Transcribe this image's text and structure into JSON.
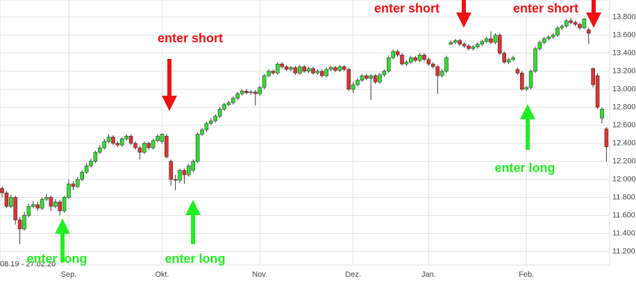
{
  "chart_data": {
    "type": "candlestick",
    "date_range": "08.19 - 27.02.20",
    "categories": [
      null,
      null,
      null,
      null,
      null,
      null,
      null,
      null,
      null,
      null,
      null,
      null,
      null,
      null,
      null,
      "Sep.",
      null,
      null,
      null,
      null,
      null,
      null,
      null,
      null,
      null,
      null,
      null,
      null,
      null,
      null,
      null,
      null,
      null,
      null,
      null,
      null,
      "Okt.",
      null,
      null,
      null,
      null,
      null,
      null,
      null,
      null,
      null,
      null,
      null,
      null,
      null,
      null,
      null,
      null,
      null,
      null,
      null,
      null,
      null,
      "Nov.",
      null,
      null,
      null,
      null,
      null,
      null,
      null,
      null,
      null,
      null,
      null,
      null,
      null,
      null,
      null,
      null,
      null,
      null,
      null,
      null,
      "Dez.",
      null,
      null,
      null,
      null,
      null,
      null,
      null,
      null,
      null,
      null,
      null,
      null,
      null,
      null,
      null,
      null,
      "Jan.",
      null,
      null,
      null,
      null,
      null,
      null,
      null,
      null,
      null,
      null,
      null,
      null,
      null,
      null,
      null,
      null,
      null,
      null,
      null,
      null,
      null,
      "Feb.",
      null,
      null,
      null,
      null,
      null,
      null,
      null,
      null,
      null,
      null,
      null,
      null,
      null,
      null,
      null,
      null,
      null,
      null
    ],
    "open": [
      11900,
      11850,
      11700,
      11800,
      11550,
      11450,
      11600,
      11700,
      11720,
      11680,
      11780,
      11800,
      11700,
      11750,
      11650,
      11800,
      11950,
      11920,
      12000,
      12080,
      12150,
      12200,
      12300,
      12350,
      12420,
      12470,
      12400,
      12380,
      12450,
      12480,
      12400,
      12350,
      12300,
      12400,
      12350,
      12430,
      12420,
      12480,
      12200,
      12000,
      11990,
      12100,
      12050,
      12100,
      12200,
      12500,
      12550,
      12620,
      12650,
      12700,
      12780,
      12830,
      12850,
      12900,
      12950,
      12980,
      12960,
      12970,
      12950,
      13020,
      13150,
      13200,
      13180,
      13280,
      13250,
      13220,
      13240,
      13180,
      13250,
      13200,
      13230,
      13180,
      13200,
      13150,
      13220,
      13240,
      13210,
      13250,
      13220,
      13000,
      13050,
      13100,
      13150,
      13120,
      13150,
      13080,
      13160,
      13200,
      13350,
      13420,
      13380,
      13280,
      13300,
      13350,
      13320,
      13380,
      13330,
      13280,
      13250,
      13150,
      13200,
      13500,
      13520,
      13540,
      13500,
      13480,
      13450,
      13470,
      13500,
      13530,
      13560,
      13520,
      13600,
      13400,
      13300,
      13330,
      13220,
      13180,
      13000,
      13020,
      13200,
      13450,
      13520,
      13560,
      13580,
      13600,
      13680,
      13700,
      13760,
      13740,
      13720,
      13680,
      13660,
      13230,
      13150,
      12680,
      12560
    ],
    "high": [
      11920,
      11870,
      11830,
      11820,
      11580,
      11640,
      11730,
      11760,
      11750,
      11800,
      11840,
      11820,
      11780,
      11770,
      11820,
      12000,
      11980,
      12030,
      12100,
      12180,
      12230,
      12320,
      12380,
      12450,
      12500,
      12490,
      12420,
      12470,
      12500,
      12500,
      12420,
      12370,
      12420,
      12420,
      12450,
      12500,
      12510,
      12500,
      12220,
      12050,
      12120,
      12120,
      12170,
      12220,
      12520,
      12570,
      12640,
      12680,
      12720,
      12800,
      12850,
      12870,
      12920,
      12970,
      13000,
      13000,
      12990,
      12990,
      13040,
      13170,
      13220,
      13220,
      13300,
      13300,
      13270,
      13260,
      13260,
      13270,
      13270,
      13250,
      13250,
      13220,
      13220,
      13240,
      13260,
      13260,
      13270,
      13270,
      13240,
      13080,
      13120,
      13170,
      13170,
      13170,
      13170,
      13180,
      13220,
      13370,
      13440,
      13440,
      13400,
      13320,
      13370,
      13370,
      13400,
      13400,
      13350,
      13300,
      13270,
      13220,
      13370,
      13540,
      13560,
      13560,
      13520,
      13500,
      13490,
      13520,
      13550,
      13580,
      13640,
      13620,
      13620,
      13420,
      13350,
      13370,
      13240,
      13200,
      13040,
      13220,
      13470,
      13540,
      13580,
      13600,
      13620,
      13700,
      13720,
      13780,
      13790,
      13760,
      13740,
      13790,
      13680,
      13240,
      13180,
      12800,
      12580
    ],
    "low": [
      11800,
      11680,
      11680,
      11500,
      11280,
      11430,
      11580,
      11680,
      11650,
      11660,
      11760,
      11650,
      11680,
      11600,
      11630,
      11780,
      11880,
      11900,
      11980,
      12060,
      12130,
      12180,
      12280,
      12330,
      12400,
      12380,
      12360,
      12360,
      12430,
      12380,
      12330,
      12220,
      12280,
      12330,
      12330,
      12410,
      12400,
      12230,
      11930,
      11880,
      11960,
      11950,
      12030,
      12080,
      12180,
      12480,
      12530,
      12600,
      12630,
      12680,
      12760,
      12810,
      12830,
      12880,
      12930,
      12940,
      12940,
      12820,
      12930,
      13000,
      13130,
      13160,
      13160,
      13230,
      13200,
      13200,
      13160,
      13160,
      13180,
      13180,
      13160,
      13160,
      13130,
      13130,
      13200,
      13190,
      13190,
      13200,
      12980,
      12960,
      13030,
      13080,
      13100,
      12880,
      13060,
      13060,
      13140,
      13180,
      13330,
      13360,
      13260,
      13260,
      13280,
      13300,
      13300,
      13310,
      13260,
      13230,
      12950,
      13130,
      13180,
      13490,
      13500,
      13480,
      13460,
      13430,
      13430,
      13450,
      13480,
      13510,
      13500,
      13500,
      13380,
      13280,
      13280,
      13310,
      13160,
      12980,
      12980,
      13000,
      13180,
      13430,
      13500,
      13540,
      13560,
      13580,
      13660,
      13680,
      13720,
      13700,
      13660,
      13670,
      13500,
      13020,
      12780,
      12620,
      12200
    ],
    "close": [
      11850,
      11700,
      11800,
      11550,
      11450,
      11600,
      11700,
      11720,
      11680,
      11780,
      11800,
      11700,
      11750,
      11650,
      11800,
      11950,
      11920,
      12000,
      12080,
      12150,
      12200,
      12300,
      12350,
      12420,
      12470,
      12400,
      12380,
      12450,
      12480,
      12400,
      12350,
      12300,
      12400,
      12350,
      12430,
      12480,
      12500,
      12250,
      12000,
      11990,
      12100,
      12050,
      12150,
      12200,
      12500,
      12550,
      12620,
      12650,
      12700,
      12780,
      12830,
      12850,
      12900,
      12950,
      12980,
      12960,
      12970,
      12950,
      13020,
      13150,
      13200,
      13180,
      13280,
      13250,
      13220,
      13240,
      13180,
      13250,
      13200,
      13230,
      13180,
      13200,
      13150,
      13220,
      13240,
      13210,
      13250,
      13220,
      13000,
      13050,
      13100,
      13150,
      13120,
      13150,
      13080,
      13160,
      13200,
      13350,
      13420,
      13380,
      13280,
      13300,
      13350,
      13320,
      13380,
      13330,
      13280,
      13250,
      13150,
      13200,
      13350,
      13520,
      13540,
      13500,
      13480,
      13450,
      13470,
      13500,
      13530,
      13560,
      13520,
      13600,
      13400,
      13300,
      13330,
      13350,
      13180,
      13000,
      13020,
      13200,
      13450,
      13520,
      13560,
      13580,
      13600,
      13680,
      13700,
      13760,
      13740,
      13720,
      13680,
      13780,
      13620,
      13050,
      12800,
      12780,
      12360
    ],
    "up_color": "#33dd33",
    "down_color": "#dd3333",
    "ylim": [
      11050,
      13990
    ],
    "yticks": [
      {
        "value": 11200,
        "label": "11.200"
      },
      {
        "value": 11400,
        "label": "11.400"
      },
      {
        "value": 11600,
        "label": "11.600"
      },
      {
        "value": 11800,
        "label": "11.800"
      },
      {
        "value": 12000,
        "label": "12.000"
      },
      {
        "value": 12200,
        "label": "12.200"
      },
      {
        "value": 12400,
        "label": "12.400"
      },
      {
        "value": 12600,
        "label": "12.600"
      },
      {
        "value": 12800,
        "label": "12.800"
      },
      {
        "value": 13000,
        "label": "13.000"
      },
      {
        "value": 13200,
        "label": "13.200"
      },
      {
        "value": 13400,
        "label": "13.400"
      },
      {
        "value": 13600,
        "label": "13.600"
      },
      {
        "value": 13800,
        "label": "13.800"
      }
    ],
    "grid": true,
    "annotations": [
      "enter short",
      "enter short",
      "enter short",
      "enter long",
      "enter long",
      "enter long"
    ]
  }
}
